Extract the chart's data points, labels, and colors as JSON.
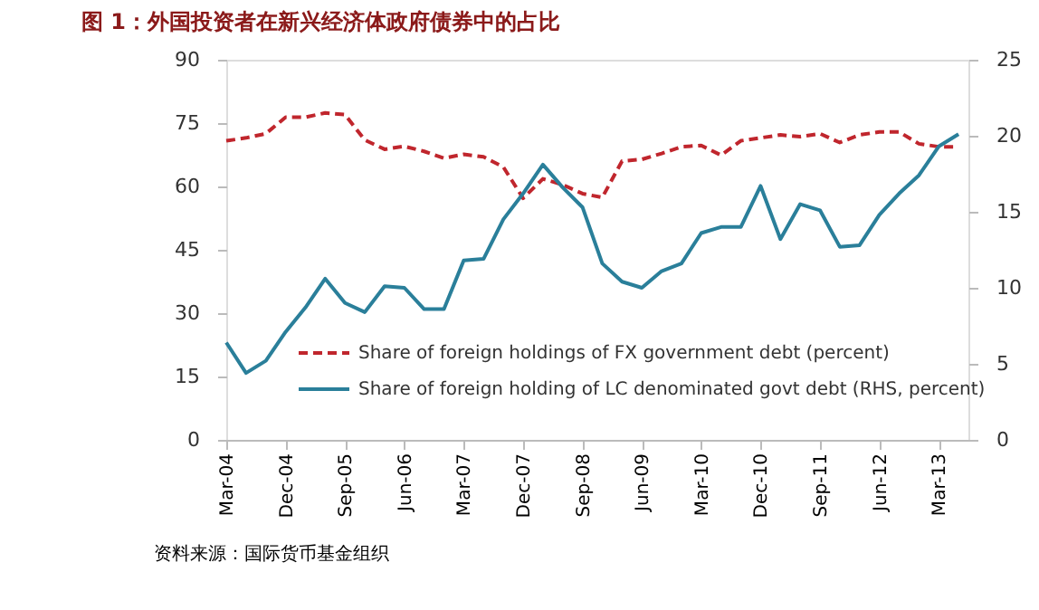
{
  "chart_data": {
    "type": "line",
    "title": "图 1：外国投资者在新兴经济体政府债券中的占比",
    "categories": [
      "Mar-04",
      null,
      null,
      "Dec-04",
      null,
      null,
      "Sep-05",
      null,
      null,
      "Jun-06",
      null,
      null,
      "Mar-07",
      null,
      null,
      "Dec-07",
      null,
      null,
      "Sep-08",
      null,
      null,
      "Jun-09",
      null,
      null,
      "Mar-10",
      null,
      null,
      "Dec-10",
      null,
      null,
      "Sep-11",
      null,
      null,
      "Jun-12",
      null,
      null,
      "Mar-13",
      null
    ],
    "series": [
      {
        "name": "Share of foreign holdings of FX government debt (percent)",
        "color": "#c0262d",
        "line_style": "dashed",
        "values": [
          70.8,
          71.5,
          72.5,
          76.4,
          76.4,
          77.4,
          77,
          71,
          68.8,
          69.5,
          68.3,
          66.7,
          67.6,
          67,
          64.6,
          57.2,
          61.8,
          60.4,
          58.3,
          57.4,
          66,
          66.4,
          67.8,
          69.4,
          69.7,
          67.4,
          70.8,
          71.5,
          72.2,
          71.8,
          72.5,
          70.4,
          72.2,
          72.9,
          72.9,
          70.1,
          69.4,
          69.4
        ]
      },
      {
        "name": "Share of foreign holding of LC denominated govt debt (RHS, percent)",
        "color": "#2a7f9a",
        "line_style": "solid",
        "axis": "y2",
        "values": [
          6.4,
          4.4,
          5.2,
          7.1,
          8.7,
          10.6,
          9.0,
          8.4,
          10.1,
          10.0,
          8.6,
          8.6,
          11.8,
          11.9,
          14.5,
          16.2,
          18.1,
          16.6,
          15.3,
          11.6,
          10.4,
          10.0,
          11.1,
          11.6,
          13.6,
          14.0,
          14.0,
          16.7,
          13.2,
          15.5,
          15.1,
          12.7,
          12.8,
          14.8,
          16.2,
          17.4,
          19.3,
          20.1
        ]
      }
    ],
    "ylim": [
      0,
      90
    ],
    "yticks": [
      0,
      15,
      30,
      45,
      60,
      75,
      90
    ],
    "y2lim": [
      0,
      25
    ],
    "y2ticks": [
      0,
      5,
      10,
      15,
      20,
      25
    ],
    "grid": false,
    "legend": "bottom",
    "annotations": [
      "资料来源：国际货币基金组织"
    ]
  }
}
